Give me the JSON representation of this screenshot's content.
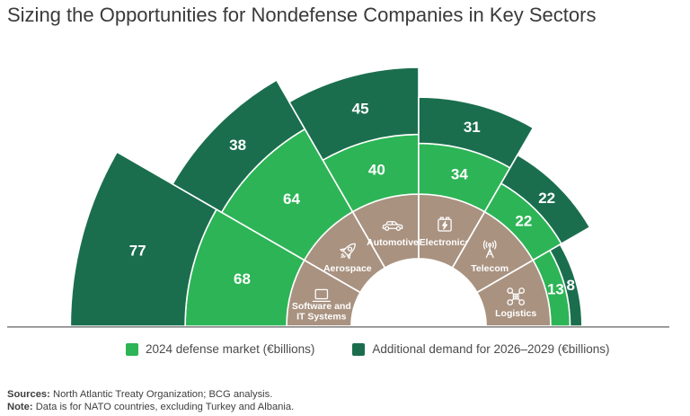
{
  "title": "Sizing the Opportunities for Nondefense Companies in Key Sectors",
  "chart_data": {
    "type": "radial_stacked_bar",
    "title": "Sizing the Opportunities for Nondefense Companies in Key Sectors",
    "unit": "€billions",
    "layout": "semicircle, 180° to 0°, 6 equal 30° sectors, values stacked radially outward from a tan hub",
    "hub_color": "#a99280",
    "baseline_color": "#8f8f8f",
    "divider_color": "#ffffff",
    "value_label_color": "#ffffff",
    "categories": [
      {
        "label": "Software and IT Systems",
        "label_lines": [
          "Software and",
          "IT Systems"
        ],
        "icon": "laptop-icon",
        "values": [
          68,
          77
        ]
      },
      {
        "label": "Aerospace",
        "label_lines": [
          "Aerospace"
        ],
        "icon": "rocket-icon",
        "values": [
          64,
          38
        ]
      },
      {
        "label": "Automotive",
        "label_lines": [
          "Automotive"
        ],
        "icon": "car-icon",
        "values": [
          40,
          45
        ]
      },
      {
        "label": "Electronics",
        "label_lines": [
          "Electronics"
        ],
        "icon": "battery-icon",
        "values": [
          34,
          31
        ]
      },
      {
        "label": "Telecom",
        "label_lines": [
          "Telecom"
        ],
        "icon": "antenna-icon",
        "values": [
          22,
          22
        ]
      },
      {
        "label": "Logistics",
        "label_lines": [
          "Logistics"
        ],
        "icon": "drone-icon",
        "values": [
          13,
          8
        ]
      }
    ],
    "series": [
      {
        "name": "2024 defense market (€billions)",
        "color": "#2db456"
      },
      {
        "name": "Additional demand for 2026–2029 (€billions)",
        "color": "#1a6e4e"
      }
    ]
  },
  "footer": {
    "sources_label": "Sources:",
    "sources_text": "North Atlantic Treaty Organization; BCG analysis.",
    "note_label": "Note:",
    "note_text": "Data is for NATO countries, excluding Turkey and Albania."
  }
}
